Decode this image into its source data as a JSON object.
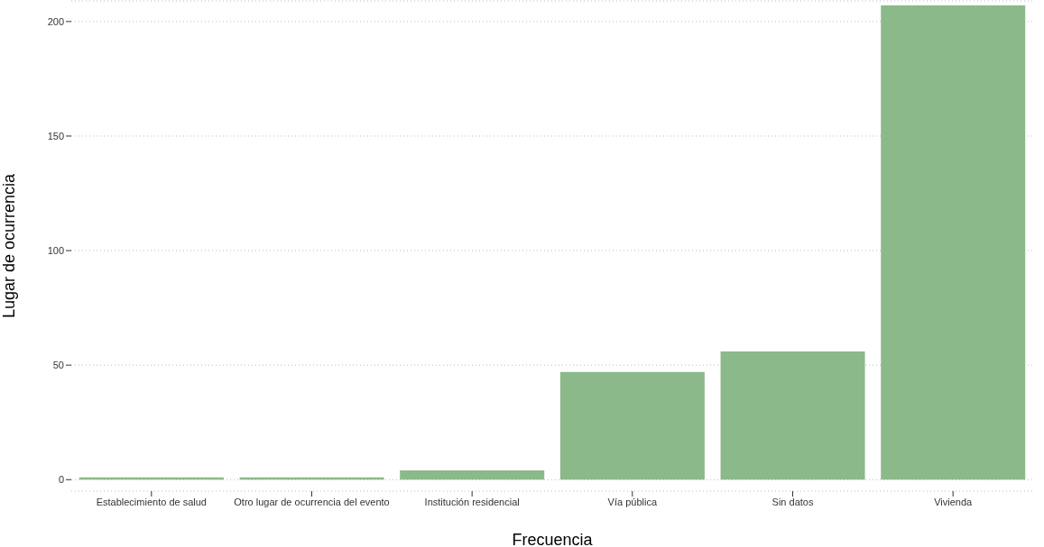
{
  "chart_data": {
    "type": "bar",
    "xlabel": "Frecuencia",
    "ylabel": "Lugar de ocurrencia",
    "categories": [
      "Establecimiento de salud",
      "Otro lugar de ocurrencia del evento",
      "Institución residencial",
      "Vía pública",
      "Sin datos",
      "Vivienda"
    ],
    "values": [
      1,
      1,
      4,
      47,
      56,
      207
    ],
    "color": "#8cb98a",
    "ylim": [
      -5,
      209
    ],
    "yticks": [
      0,
      50,
      100,
      150,
      200
    ],
    "grid": "y"
  }
}
